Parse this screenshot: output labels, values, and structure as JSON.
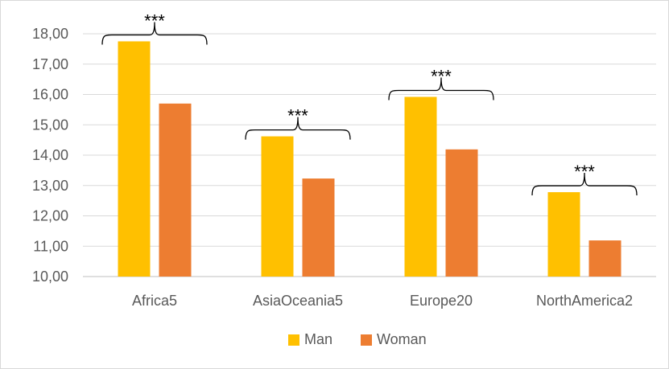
{
  "chart_data": {
    "type": "bar",
    "categories": [
      "Africa5",
      "AsiaOceania5",
      "Europe20",
      "NorthAmerica2"
    ],
    "series": [
      {
        "name": "Man",
        "color": "#FFC000",
        "values": [
          17.75,
          14.62,
          15.92,
          12.78
        ]
      },
      {
        "name": "Woman",
        "color": "#ED7D31",
        "values": [
          15.7,
          13.23,
          14.19,
          11.19
        ]
      }
    ],
    "ylim": [
      10,
      18
    ],
    "yticks": [
      "10,00",
      "11,00",
      "12,00",
      "13,00",
      "14,00",
      "15,00",
      "16,00",
      "17,00",
      "18,00"
    ],
    "annotations": [
      "***",
      "***",
      "***",
      "***"
    ],
    "grid": true,
    "legend": "bottom",
    "title": "",
    "xlabel": "",
    "ylabel": ""
  }
}
